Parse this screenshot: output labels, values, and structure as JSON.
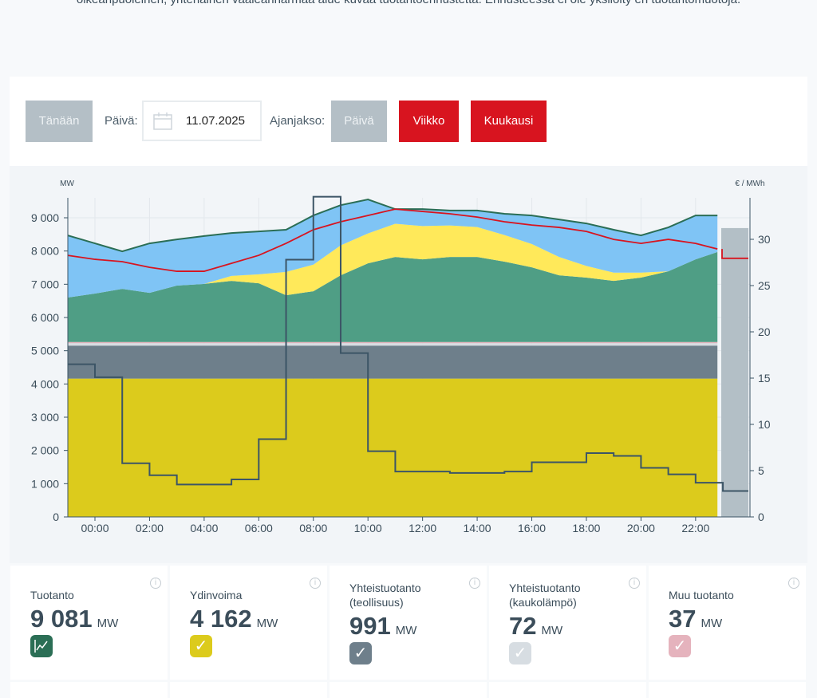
{
  "intro_text": "oikeanpuoleinen, yhtenäinen vaaleanharmaa alue kuvaa tuotantoennustetta. Ennusteessa ei ole yksilöity eri tuotantomuotoja.",
  "toolbar": {
    "today": "Tänään",
    "day_label": "Päivä:",
    "date_value": "11.07.2025",
    "period_label": "Ajanjakso:",
    "period_day": "Päivä",
    "period_week": "Viikko",
    "period_month": "Kuukausi"
  },
  "colors": {
    "nuclear": "#dccb1c",
    "chp_industry": "#6e7f8b",
    "chp_district": "#d7dde2",
    "other": "#e5b3bd",
    "wind": "#4f9e85",
    "solar": "#ffe95a",
    "hydro": "#7fc4f5",
    "total": "#2b6e55",
    "consumption": "#d8141f",
    "price": "#3c5566",
    "forecast": "#b3bfc6"
  },
  "chart_data": {
    "type": "area",
    "left_unit": "MW",
    "right_unit": "€ / MWh",
    "yticks": [
      "0",
      "1 000",
      "2 000",
      "3 000",
      "4 000",
      "5 000",
      "6 000",
      "7 000",
      "8 000",
      "9 000"
    ],
    "y2ticks": [
      "0",
      "5",
      "10",
      "15",
      "20",
      "25",
      "30"
    ],
    "xticks": [
      "00:00",
      "02:00",
      "04:00",
      "06:00",
      "08:00",
      "10:00",
      "12:00",
      "14:00",
      "16:00",
      "18:00",
      "20:00",
      "22:00"
    ],
    "hours": [
      -1,
      0,
      1,
      2,
      3,
      4,
      5,
      6,
      7,
      8,
      9,
      10,
      11,
      12,
      13,
      14,
      15,
      16,
      17,
      18,
      19,
      20,
      21,
      22,
      22.8
    ],
    "nuclear": 4162,
    "chp_industry": 991,
    "chp_district": 72,
    "other": 37,
    "wind": [
      1338,
      1458,
      1598,
      1478,
      1698,
      1748,
      1838,
      1768,
      1408,
      1528,
      2008,
      2368,
      2558,
      2488,
      2558,
      2558,
      2418,
      2248,
      2008,
      1938,
      1838,
      1938,
      2128,
      2488,
      2708
    ],
    "solar": [
      0,
      0,
      0,
      0,
      0,
      0,
      150,
      270,
      700,
      800,
      900,
      900,
      1000,
      1000,
      950,
      900,
      800,
      700,
      550,
      350,
      250,
      150,
      0,
      0,
      0
    ],
    "total": [
      8470,
      8230,
      7990,
      8230,
      8350,
      8450,
      8540,
      8590,
      8640,
      9070,
      9380,
      9550,
      9260,
      9260,
      9220,
      9220,
      9120,
      9070,
      8950,
      8830,
      8640,
      8470,
      8710,
      9070,
      9070
    ],
    "consumption": [
      7870,
      7750,
      7680,
      7510,
      7390,
      7390,
      7630,
      7870,
      8230,
      8640,
      8880,
      9070,
      9260,
      9190,
      9120,
      9020,
      8880,
      8780,
      8710,
      8590,
      8350,
      8230,
      8350,
      8230,
      8060
    ],
    "consumption_forecast": 7780,
    "forecast_production": 8690,
    "price_steps": [
      16.5,
      15.1,
      5.8,
      4.5,
      3.5,
      3.5,
      4.05,
      8.4,
      27.8,
      34.6,
      17.7,
      7.1,
      4.9,
      4.9,
      4.75,
      4.75,
      4.9,
      5.9,
      5.9,
      6.9,
      6.6,
      5.3,
      4.6,
      3.7,
      2.8
    ],
    "ylim": [
      0,
      9600
    ],
    "y2lim": [
      0,
      34.5
    ]
  },
  "cards": [
    {
      "title": "Tuotanto",
      "value": "9 081",
      "unit": "MW",
      "icon": "chart-icon"
    },
    {
      "title": "Ydinvoima",
      "value": "4 162",
      "unit": "MW",
      "icon": "check-icon"
    },
    {
      "title": "Yhteistuotanto (teollisuus)",
      "value": "991",
      "unit": "MW",
      "icon": "check-icon"
    },
    {
      "title": "Yhteistuotanto (kaukolämpö)",
      "value": "72",
      "unit": "MW",
      "icon": "check-icon"
    },
    {
      "title": "Muu tuotanto",
      "value": "37",
      "unit": "MW",
      "icon": "check-icon"
    }
  ]
}
